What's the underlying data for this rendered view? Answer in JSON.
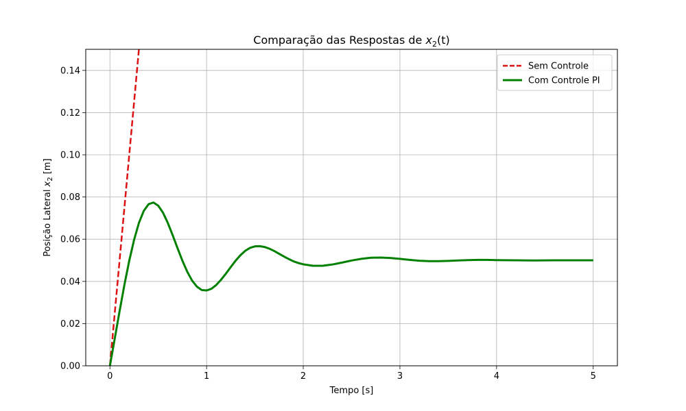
{
  "chart_data": {
    "type": "line",
    "title": "Comparação das Respostas de x₂(t)",
    "title_parts": {
      "prefix": "Comparação das Respostas de ",
      "var": "x",
      "sub": "2",
      "suffix": "(t)"
    },
    "xlabel": "Tempo [s]",
    "ylabel_parts": {
      "prefix": "Posição Lateral ",
      "var": "x",
      "sub": "2",
      "suffix": " [m]"
    },
    "xlim": [
      -0.25,
      5.25
    ],
    "ylim": [
      0,
      0.15
    ],
    "x_ticks": [
      0,
      1,
      2,
      3,
      4,
      5
    ],
    "x_tick_labels": [
      "0",
      "1",
      "2",
      "3",
      "4",
      "5"
    ],
    "y_ticks": [
      0,
      0.02,
      0.04,
      0.06,
      0.08,
      0.1,
      0.12,
      0.14
    ],
    "y_tick_labels": [
      "0.00",
      "0.02",
      "0.04",
      "0.06",
      "0.08",
      "0.10",
      "0.12",
      "0.14"
    ],
    "grid": true,
    "legend_position": "top-right",
    "series": [
      {
        "name": "Sem Controle",
        "color": "#dd1111",
        "style": "dashed",
        "x": [
          0,
          0.1,
          0.2,
          0.3
        ],
        "y": [
          0,
          0.05,
          0.1,
          0.15
        ]
      },
      {
        "name": "Com Controle PI",
        "color": "#008000",
        "style": "solid",
        "x": [
          0,
          0.05,
          0.1,
          0.15,
          0.2,
          0.25,
          0.3,
          0.35,
          0.4,
          0.45,
          0.5,
          0.55,
          0.6,
          0.65,
          0.7,
          0.75,
          0.8,
          0.85,
          0.9,
          0.95,
          1.0,
          1.05,
          1.1,
          1.15,
          1.2,
          1.25,
          1.3,
          1.35,
          1.4,
          1.45,
          1.5,
          1.55,
          1.6,
          1.65,
          1.7,
          1.75,
          1.8,
          1.85,
          1.9,
          1.95,
          2.0,
          2.1,
          2.2,
          2.3,
          2.4,
          2.5,
          2.6,
          2.7,
          2.8,
          2.9,
          3.0,
          3.1,
          3.2,
          3.3,
          3.4,
          3.5,
          3.6,
          3.7,
          3.8,
          3.9,
          4.0,
          4.2,
          4.4,
          4.6,
          4.8,
          5.0
        ],
        "y": [
          0,
          0.0129,
          0.0259,
          0.0384,
          0.0498,
          0.0597,
          0.0677,
          0.0734,
          0.0766,
          0.0774,
          0.0759,
          0.0725,
          0.0676,
          0.0618,
          0.0557,
          0.0498,
          0.0446,
          0.0404,
          0.0375,
          0.0359,
          0.0357,
          0.0365,
          0.0383,
          0.0408,
          0.0437,
          0.0468,
          0.0498,
          0.0524,
          0.0545,
          0.0559,
          0.0566,
          0.0567,
          0.0563,
          0.0555,
          0.0544,
          0.0531,
          0.0518,
          0.0506,
          0.0495,
          0.0487,
          0.0481,
          0.0474,
          0.0474,
          0.048,
          0.0489,
          0.0499,
          0.0507,
          0.0512,
          0.0513,
          0.0511,
          0.0507,
          0.0502,
          0.0498,
          0.0496,
          0.0496,
          0.0497,
          0.0499,
          0.0501,
          0.0502,
          0.0502,
          0.0501,
          0.05,
          0.0499,
          0.05,
          0.05,
          0.05
        ]
      }
    ]
  }
}
